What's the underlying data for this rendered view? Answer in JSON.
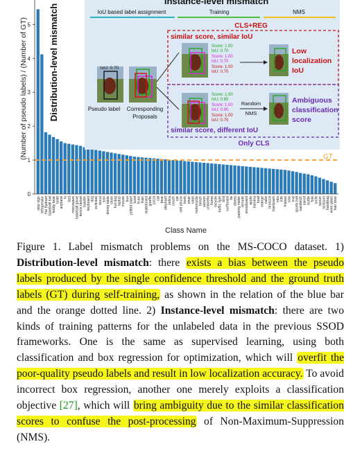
{
  "figure": {
    "chart_data": {
      "type": "bar",
      "ylabel": "(Number of pseudo labels) / (Number of GT)",
      "xlabel": "Class Name",
      "ylim": [
        0,
        5.6
      ],
      "yticks": [
        0,
        1,
        2,
        3,
        4,
        5
      ],
      "reference_line": {
        "label": "GT",
        "value": 1.0
      },
      "categories": [
        "stop sign",
        "refrigerator",
        "fire hydrant",
        "baseball bat",
        "teddy bear",
        "toilet",
        "airplane",
        "tv",
        "bed",
        "microwave",
        "baseball glove",
        "tennis racket",
        "toaster",
        "keyboard",
        "dog",
        "suitcase",
        "donut",
        "sink",
        "dining table",
        "clock",
        "hot dog",
        "laptop",
        "mouse",
        "bus",
        "potted plant",
        "bowl",
        "truck",
        "train",
        "skateboard",
        "giraffe",
        "pizza",
        "cat",
        "bear",
        "elephant",
        "zebra",
        "couch",
        "car",
        "cell phone",
        "book",
        "chair",
        "vase",
        "motorcycle",
        "bench",
        "person",
        "umbrella",
        "horse",
        "bicycle",
        "traffic light",
        "bird",
        "surfboard",
        "tie",
        "sheep",
        "parking meter",
        "remote",
        "snowboard",
        "apple",
        "banana",
        "boat",
        "orange",
        "cake",
        "broccoli",
        "backpack",
        "skis",
        "kite",
        "frisbee",
        "cow",
        "cup",
        "sports ball",
        "sandwich",
        "carrot",
        "bottle",
        "fork",
        "knife",
        "spoon",
        "scissors",
        "handbag",
        "wine glass",
        "hair drier"
      ],
      "values": [
        5.45,
        4.12,
        1.82,
        1.75,
        1.68,
        1.62,
        1.55,
        1.5,
        1.48,
        1.46,
        1.44,
        1.42,
        1.38,
        1.36,
        1.34,
        1.3,
        1.28,
        1.26,
        1.24,
        1.22,
        1.2,
        1.18,
        1.16,
        1.14,
        1.12,
        1.1,
        1.09,
        1.08,
        1.07,
        1.06,
        1.05,
        1.04,
        1.03,
        1.02,
        1.01,
        1.0,
        0.99,
        0.98,
        0.97,
        0.96,
        0.95,
        0.94,
        0.93,
        0.92,
        0.91,
        0.9,
        0.89,
        0.88,
        0.87,
        0.86,
        0.85,
        0.84,
        0.83,
        0.82,
        0.81,
        0.8,
        0.79,
        0.78,
        0.77,
        0.76,
        0.75,
        0.74,
        0.73,
        0.72,
        0.71,
        0.69,
        0.67,
        0.65,
        0.62,
        0.6,
        0.58,
        0.55,
        0.52,
        0.48,
        0.44,
        0.4,
        0.36,
        0.32
      ]
    },
    "distribution_label": "Distribution-level  mismatch",
    "instance": {
      "title": "Instance-level mismatch",
      "headers": {
        "assign": "IoU based label assignment",
        "train": "Training",
        "nms": "NMS"
      },
      "iou_tag": "IoU: 0.70",
      "pseudo_label": "Pseudo label",
      "corresponding": "Corresponding",
      "proposals": "Proposals",
      "cls_reg": "CLS+REG",
      "similar1": "similar score, similar IoU",
      "similar2": "similar score, different IoU",
      "only_cls": "Only CLS",
      "random": "Random",
      "nms": "NMS",
      "low_loc": [
        "Low",
        "localization",
        "IoU"
      ],
      "ambiguous": [
        "Ambiguous",
        "classification",
        "score"
      ],
      "top_scores": [
        {
          "s": "Score: 1.00",
          "i": "IoU: 0.70",
          "sc": "#1aa51a"
        },
        {
          "s": "Score: 1.00",
          "i": "IoU: 0.70",
          "sc": "#d91fd9"
        },
        {
          "s": "Score: 1.00",
          "i": "IoU: 0.70",
          "sc": "#cc1111"
        }
      ],
      "bottom_scores": [
        {
          "s": "Score: 1.00",
          "i": "IoU: 0.65",
          "sc": "#1aa51a"
        },
        {
          "s": "Score: 1.00",
          "i": "IoU: 0.90",
          "sc": "#d91fd9"
        },
        {
          "s": "Score: 1.00",
          "i": "IoU: 0.75",
          "sc": "#cc1111"
        }
      ]
    },
    "colors": {
      "bar": "#2b7bb8",
      "gt": "#f5a033",
      "red": "#cc1111",
      "purple": "#6a2bb3",
      "panel": "#dde9f5"
    }
  },
  "caption": {
    "fig_label": "Figure 1.",
    "t1": " Label mismatch problems on the MS-COCO dataset. 1) ",
    "b1": "Distribution-level mismatch",
    "t2": ": there ",
    "h1": "exists a bias between the pseudo labels produced by the single confidence threshold and the ground truth labels (GT) during self-training,",
    "t3": " as shown in the relation of the blue bar and the orange dotted line. 2) ",
    "b2": "Instance-level mismatch",
    "t4": ": there are two kinds of training patterns for the unlabeled data in the previous SSOD frameworks. One is the same as supervised learning, using both classification and box regression for optimization, which will ",
    "h2": "overfit the poor-quality pseudo labels and result in low localization accuracy.",
    "t5": " To avoid incorrect box regression, another one merely exploits a classification objective ",
    "ref": "[27]",
    "t6": ", which will ",
    "h3": "bring ambiguity due to the similar classification scores to confuse the post-processing",
    "t7": " of Non-Maximum-Suppression (NMS)."
  }
}
